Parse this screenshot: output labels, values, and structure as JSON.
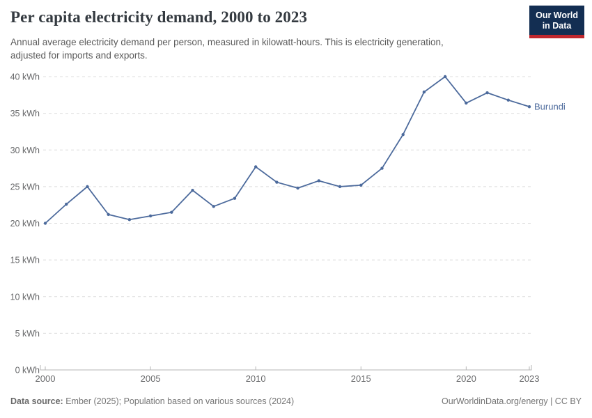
{
  "header": {
    "title": "Per capita electricity demand, 2000 to 2023",
    "subtitle_line1": "Annual average electricity demand per person, measured in kilowatt-hours. This is electricity generation,",
    "subtitle_line2": "adjusted for imports and exports.",
    "logo_line1": "Our World",
    "logo_line2": "in Data"
  },
  "chart_data": {
    "type": "line",
    "title": "Per capita electricity demand, 2000 to 2023",
    "x": [
      2000,
      2001,
      2002,
      2003,
      2004,
      2005,
      2006,
      2007,
      2008,
      2009,
      2010,
      2011,
      2012,
      2013,
      2014,
      2015,
      2016,
      2017,
      2018,
      2019,
      2020,
      2021,
      2022,
      2023
    ],
    "series": [
      {
        "name": "Burundi",
        "color": "#4c6a9c",
        "values": [
          20.0,
          22.6,
          25.0,
          21.2,
          20.5,
          21.0,
          21.5,
          24.5,
          22.3,
          23.4,
          27.7,
          25.6,
          24.8,
          25.8,
          25.0,
          25.2,
          27.5,
          32.1,
          37.9,
          40.0,
          36.4,
          37.8,
          36.8,
          35.9
        ]
      }
    ],
    "xlabel": "",
    "ylabel": "",
    "unit_suffix": " kWh",
    "y_ticks": [
      0,
      5,
      10,
      15,
      20,
      25,
      30,
      35,
      40
    ],
    "x_ticks": [
      2000,
      2005,
      2010,
      2015,
      2020,
      2023
    ],
    "xlim": [
      2000,
      2023
    ],
    "ylim": [
      0,
      40
    ],
    "grid": "horizontal-dashed",
    "legend_position": "end-of-line-label"
  },
  "footer": {
    "datasource_label": "Data source:",
    "datasource_text": " Ember (2025); Population based on various sources (2024)",
    "credit": "OurWorldinData.org/energy | CC BY"
  },
  "colors": {
    "line": "#4c6a9c",
    "grid": "#dcdcdc",
    "axis": "#b6b6b6",
    "axis_text": "#68696b",
    "title_text": "#343a40",
    "subtitle_text": "#5a5a5a",
    "footer_text": "#757575",
    "logo_bg": "#132e52",
    "logo_red": "#c0272d"
  }
}
